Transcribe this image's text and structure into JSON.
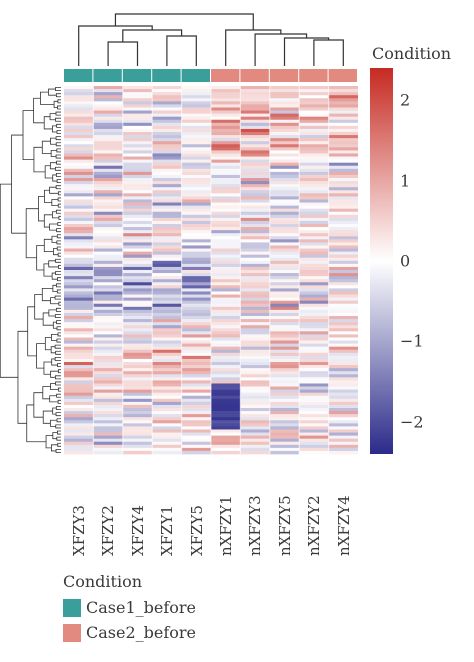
{
  "chart_data": {
    "type": "heatmap",
    "columns": [
      "XFZY3",
      "XFZY2",
      "XFZY4",
      "XFZY1",
      "XFZY5",
      "nXFZY1",
      "nXFZY3",
      "nXFZY5",
      "nXFZY2",
      "nXFZY4"
    ],
    "column_groups": [
      "Case1_before",
      "Case1_before",
      "Case1_before",
      "Case1_before",
      "Case1_before",
      "Case2_before",
      "Case2_before",
      "Case2_before",
      "Case2_before",
      "Case2_before"
    ],
    "row_count": 120,
    "color_scale": {
      "title": "Condition",
      "min": -2.4,
      "max": 2.4,
      "ticks": [
        2,
        1,
        0,
        -1,
        -2
      ],
      "tick_labels": [
        "2",
        "1",
        "0",
        "−1",
        "−2"
      ],
      "colors": [
        "#2b2a8a",
        "#ffffff",
        "#c62a22"
      ]
    },
    "annotation": {
      "title": "Condition",
      "groups": [
        {
          "name": "Case1_before",
          "color": "#3a9e9b"
        },
        {
          "name": "Case2_before",
          "color": "#e38a80"
        }
      ]
    },
    "column_dendrogram": true,
    "row_dendrogram": true
  }
}
